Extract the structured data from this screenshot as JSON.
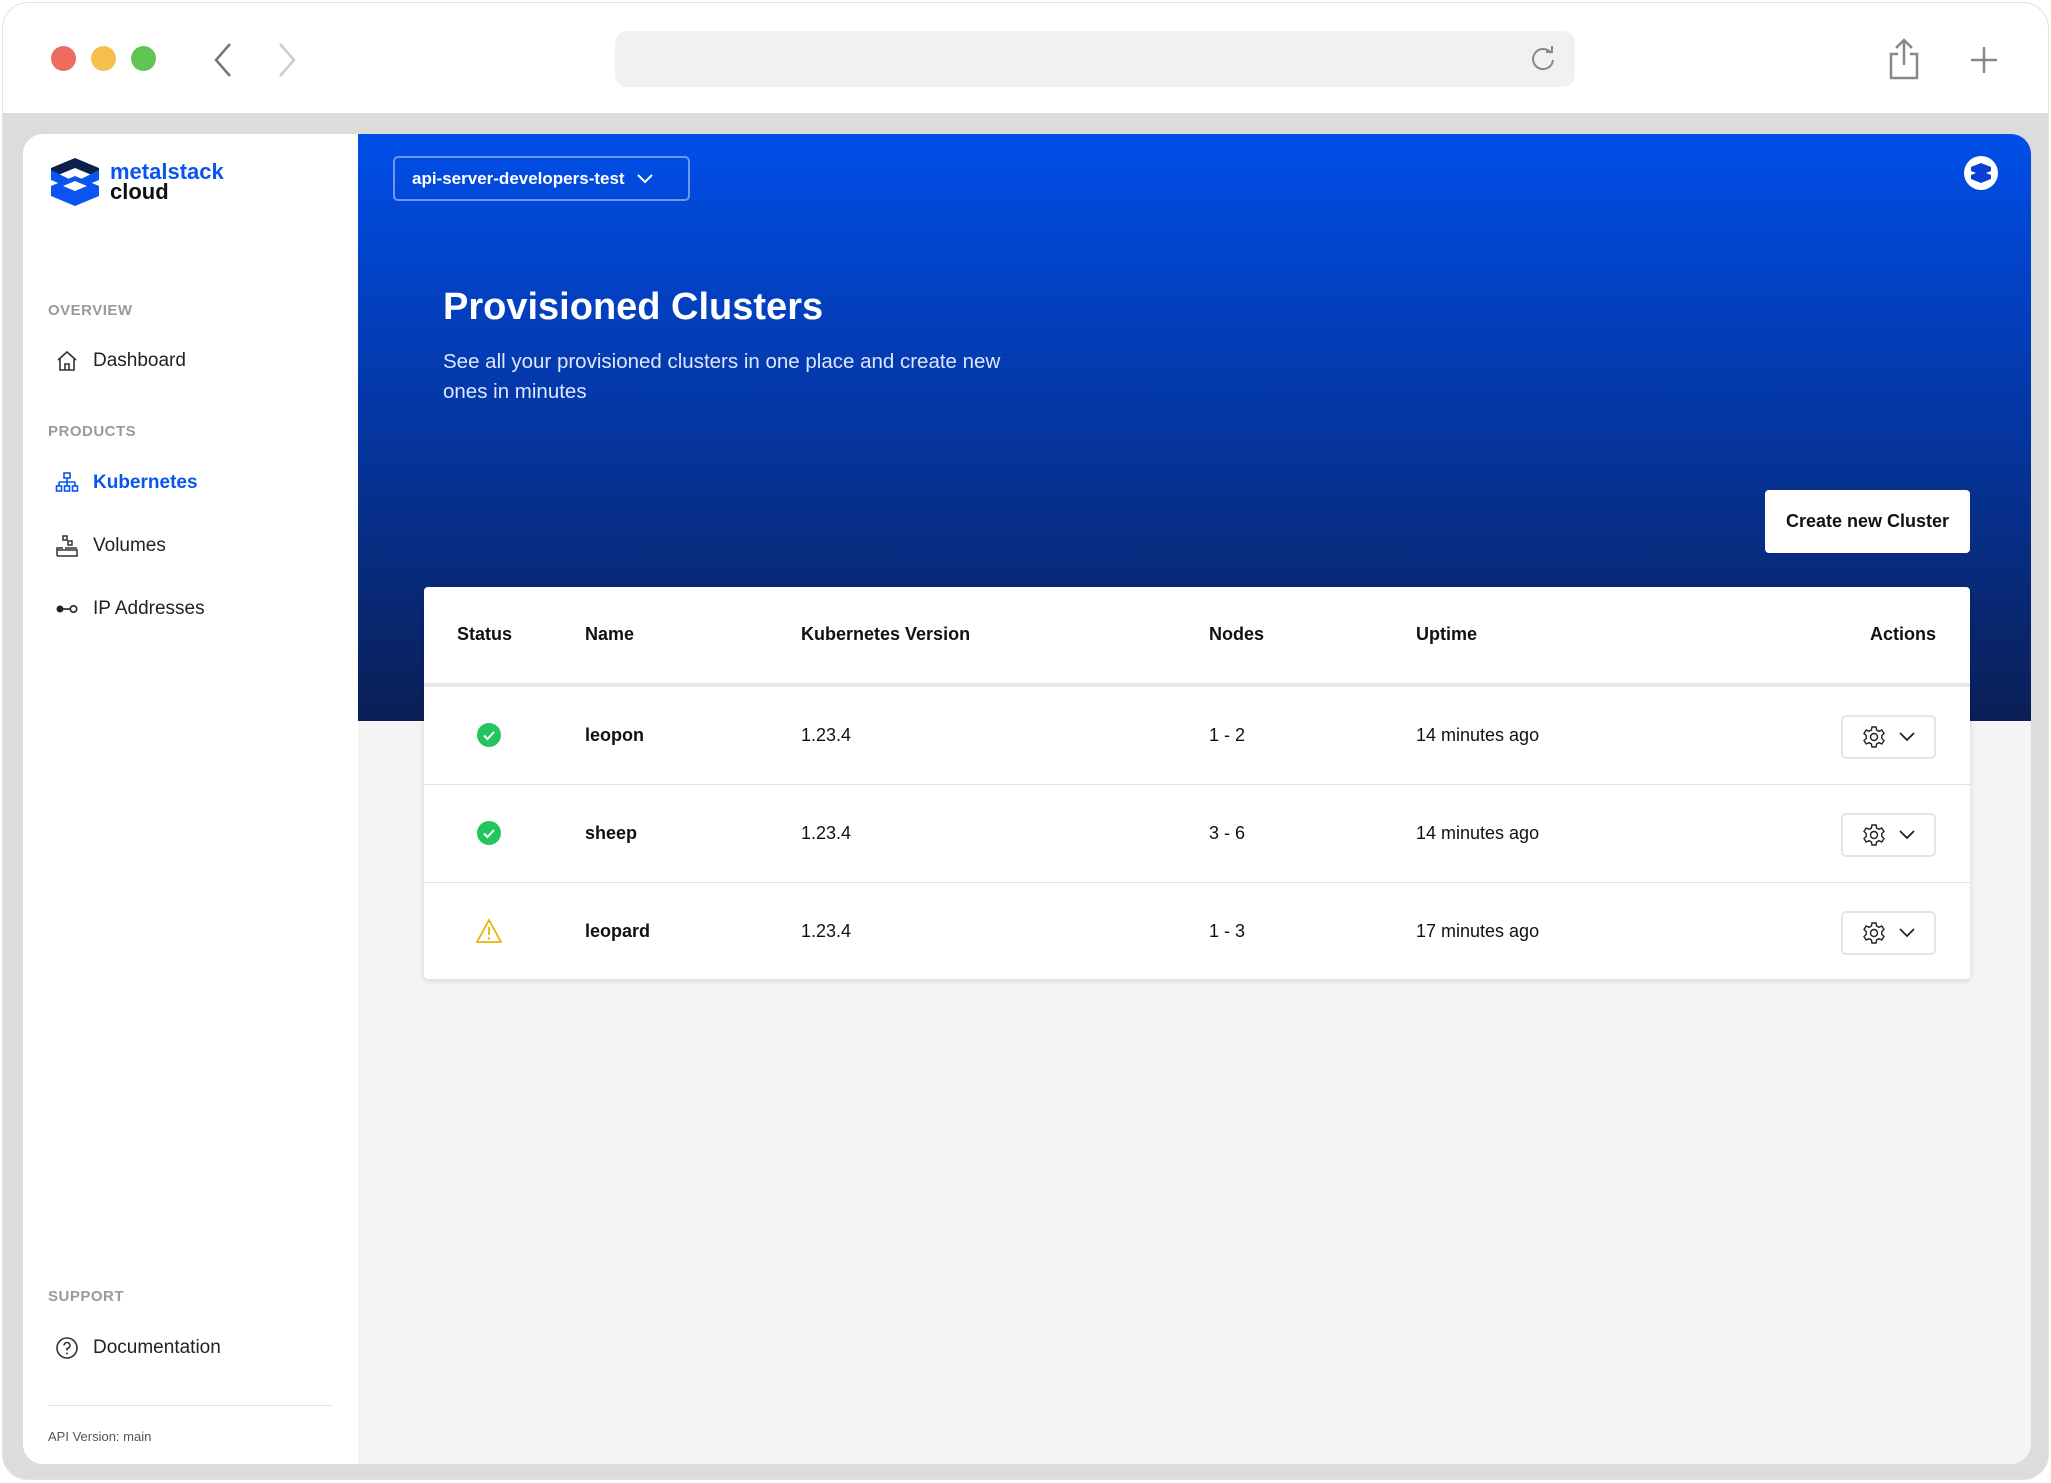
{
  "browser": {
    "url": ""
  },
  "brand": {
    "name_line1": "metalstack",
    "name_line2": "cloud"
  },
  "sidebar": {
    "sections": [
      {
        "label": "OVERVIEW"
      },
      {
        "label": "PRODUCTS"
      },
      {
        "label": "SUPPORT"
      }
    ],
    "items": [
      {
        "label": "Dashboard",
        "icon": "home-icon"
      },
      {
        "label": "Kubernetes",
        "icon": "cluster-icon",
        "active": true
      },
      {
        "label": "Volumes",
        "icon": "volumes-icon"
      },
      {
        "label": "IP Addresses",
        "icon": "ip-icon"
      },
      {
        "label": "Documentation",
        "icon": "help-circle-icon"
      }
    ],
    "api_version": "API Version: main"
  },
  "header": {
    "project": "api-server-developers-test",
    "title": "Provisioned Clusters",
    "subtitle": "See all your provisioned clusters in one place and create new ones in minutes",
    "create_button": "Create new Cluster"
  },
  "colors": {
    "accent": "#0a55f0",
    "ok": "#22c55e",
    "warn": "#eab308"
  },
  "table": {
    "columns": [
      "Status",
      "Name",
      "Kubernetes Version",
      "Nodes",
      "Uptime",
      "Actions"
    ],
    "rows": [
      {
        "status": "ok",
        "name": "leopon",
        "version": "1.23.4",
        "nodes": "1 - 2",
        "uptime": "14 minutes ago"
      },
      {
        "status": "ok",
        "name": "sheep",
        "version": "1.23.4",
        "nodes": "3 - 6",
        "uptime": "14 minutes ago"
      },
      {
        "status": "warning",
        "name": "leopard",
        "version": "1.23.4",
        "nodes": "1 - 3",
        "uptime": "17 minutes ago"
      }
    ]
  }
}
